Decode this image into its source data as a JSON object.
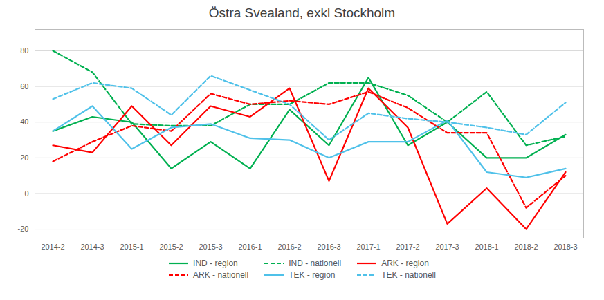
{
  "chart_data": {
    "type": "line",
    "title": "Östra Svealand, exkl Stockholm",
    "categories": [
      "2014-2",
      "2014-3",
      "2015-1",
      "2015-2",
      "2015-3",
      "2016-1",
      "2016-2",
      "2016-3",
      "2017-1",
      "2017-2",
      "2017-3",
      "2018-1",
      "2018-2",
      "2018-3"
    ],
    "series": [
      {
        "name": "IND - region",
        "color": "#00b050",
        "line_style": "solid",
        "values": [
          35,
          43,
          40,
          14,
          29,
          14,
          47,
          27,
          65,
          27,
          40,
          20,
          20,
          33
        ]
      },
      {
        "name": "IND - nationell",
        "color": "#00b050",
        "line_style": "dashed",
        "values": [
          80,
          68,
          39,
          38,
          38,
          50,
          50,
          62,
          62,
          55,
          40,
          57,
          27,
          32
        ]
      },
      {
        "name": "ARK - region",
        "color": "#ff0000",
        "line_style": "solid",
        "values": [
          27,
          23,
          49,
          27,
          49,
          43,
          59,
          7,
          59,
          37,
          -17,
          3,
          -20,
          12
        ]
      },
      {
        "name": "ARK - nationell",
        "color": "#ff0000",
        "line_style": "dashed",
        "values": [
          18,
          29,
          38,
          35,
          56,
          50,
          52,
          50,
          57,
          48,
          34,
          34,
          -8,
          10
        ]
      },
      {
        "name": "TEK - region",
        "color": "#4fc1e9",
        "line_style": "solid",
        "values": [
          35,
          49,
          25,
          37,
          39,
          31,
          30,
          20,
          29,
          29,
          41,
          12,
          9,
          14
        ]
      },
      {
        "name": "TEK - nationell",
        "color": "#4fc1e9",
        "line_style": "dashed",
        "values": [
          53,
          62,
          59,
          44,
          66,
          58,
          50,
          30,
          45,
          42,
          40,
          37,
          33,
          51
        ]
      }
    ],
    "ylim": [
      -25,
      92
    ],
    "yticks": [
      -20,
      0,
      20,
      40,
      60,
      80
    ],
    "grid": true,
    "legend": "bottom"
  }
}
